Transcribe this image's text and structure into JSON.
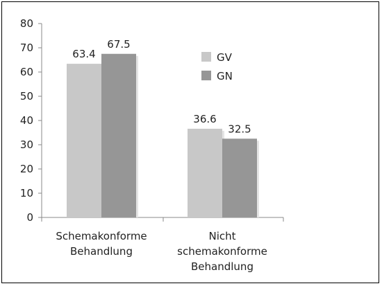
{
  "chart_data": {
    "type": "bar",
    "categories": [
      [
        "Schemakonforme",
        "Behandlung"
      ],
      [
        "Nicht",
        "schemakonforme",
        "Behandlung"
      ]
    ],
    "series": [
      {
        "name": "GV",
        "values": [
          63.4,
          36.6
        ],
        "labels": [
          "63.4",
          "36.6"
        ],
        "color": "#c8c8c8"
      },
      {
        "name": "GN",
        "values": [
          67.5,
          32.5
        ],
        "labels": [
          "67.5",
          "32.5"
        ],
        "color": "#969696"
      }
    ],
    "ylim": [
      0,
      80
    ],
    "yticks": [
      0,
      10,
      20,
      30,
      40,
      50,
      60,
      70,
      80
    ],
    "grid": false,
    "legend_position": "top-right",
    "shadow_color": "#e4e4e4",
    "axis_color": "#888888"
  }
}
